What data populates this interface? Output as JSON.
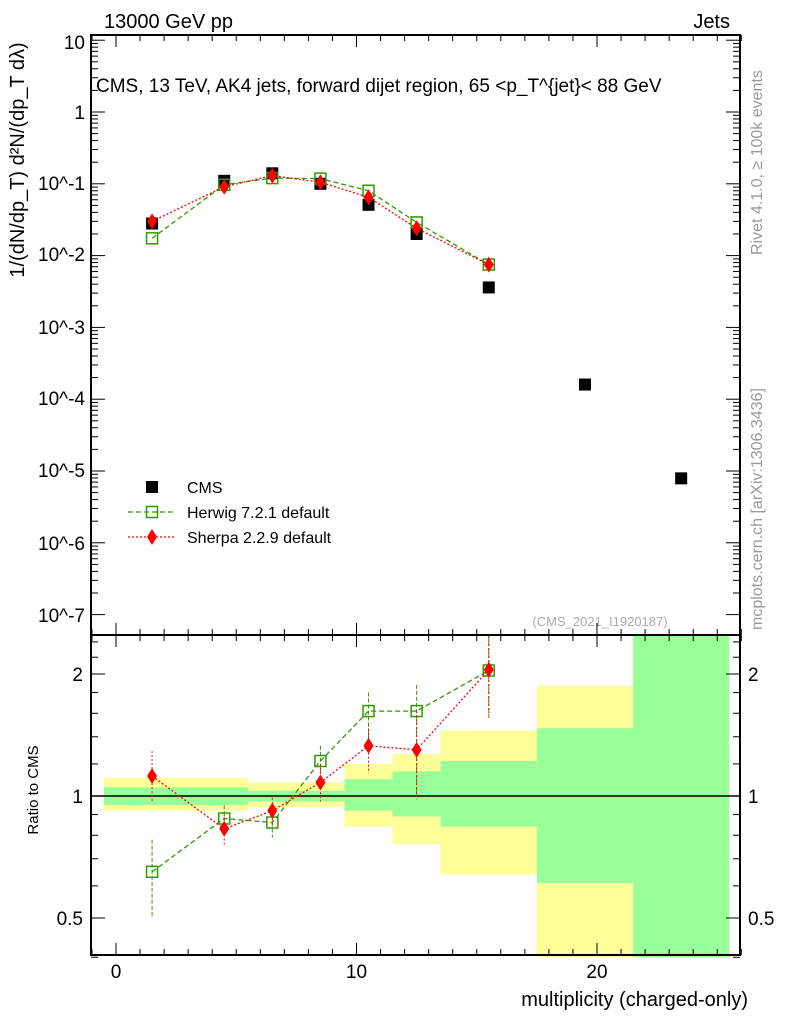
{
  "header": {
    "left": "13000 GeV pp",
    "right": "Jets"
  },
  "side_texts": {
    "rivet": "Rivet 4.1.0, ≥ 100k events",
    "mcplots": "mcplots.cern.ch [arXiv:1306.3436]"
  },
  "chart_data": [
    {
      "type": "scatter",
      "title": "CMS, 13 TeV, AK4 jets, forward dijet region, 65 <p_T^{jet}< 88 GeV",
      "ylabel": "1/(dN/dp_T) d²N/(dp_T dλ)",
      "yscale": "log",
      "ylim": [
        5e-08,
        15
      ],
      "xlim": [
        -1,
        26
      ],
      "yticks": [
        {
          "v": 10,
          "label": "10"
        },
        {
          "v": 1,
          "label": "1"
        },
        {
          "v": 0.1,
          "label": "10^-1"
        },
        {
          "v": 0.01,
          "label": "10^-2"
        },
        {
          "v": 0.001,
          "label": "10^-3"
        },
        {
          "v": 0.0001,
          "label": "10^-4"
        },
        {
          "v": 1e-05,
          "label": "10^-5"
        },
        {
          "v": 1e-06,
          "label": "10^-6"
        },
        {
          "v": 1e-07,
          "label": "10^-7"
        }
      ],
      "watermark": "(CMS_2021_I1920187)",
      "legend_position": "bottom-left",
      "series": [
        {
          "name": "CMS",
          "color": "#000000",
          "marker": "square-filled",
          "x": [
            1.5,
            4.5,
            6.5,
            8.5,
            10.5,
            12.5,
            15.5,
            19.5,
            23.5
          ],
          "y": [
            0.028,
            0.11,
            0.14,
            0.1,
            0.051,
            0.02,
            0.0036,
            0.00016,
            7.9e-06
          ]
        },
        {
          "name": "Herwig 7.2.1 default",
          "color": "#339900",
          "marker": "square-open",
          "line": "dashed",
          "x": [
            1.5,
            4.5,
            6.5,
            8.5,
            10.5,
            12.5,
            15.5
          ],
          "y": [
            0.0174,
            0.097,
            0.12,
            0.118,
            0.08,
            0.029,
            0.0075
          ]
        },
        {
          "name": "Sherpa 2.2.9 default",
          "color": "#ff0000",
          "marker": "diamond",
          "line": "dotted",
          "x": [
            1.5,
            4.5,
            6.5,
            8.5,
            10.5,
            12.5,
            15.5
          ],
          "y": [
            0.03,
            0.091,
            0.13,
            0.105,
            0.065,
            0.024,
            0.0075
          ]
        }
      ]
    },
    {
      "type": "line",
      "ylabel": "Ratio to CMS",
      "xlabel": "multiplicity (charged-only)",
      "yscale": "log",
      "ylim": [
        0.4,
        2.5
      ],
      "xlim": [
        -1,
        26
      ],
      "xticks": [
        {
          "v": 0,
          "label": "0"
        },
        {
          "v": 10,
          "label": "10"
        },
        {
          "v": 20,
          "label": "20"
        }
      ],
      "yticks": [
        {
          "v": 2,
          "label": "2"
        },
        {
          "v": 1,
          "label": "1"
        },
        {
          "v": 0.5,
          "label": "0.5"
        }
      ],
      "bands": {
        "edges": [
          -0.5,
          5.5,
          9.5,
          11.5,
          13.5,
          17.5,
          21.5,
          25.5
        ],
        "stat_lo": [
          0.95,
          0.97,
          0.92,
          0.89,
          0.84,
          0.61,
          0.4
        ],
        "stat_hi": [
          1.05,
          1.03,
          1.1,
          1.15,
          1.22,
          1.47,
          2.5
        ],
        "total_lo": [
          0.92,
          0.94,
          0.84,
          0.76,
          0.64,
          0.4,
          0.4
        ],
        "total_hi": [
          1.11,
          1.08,
          1.2,
          1.27,
          1.45,
          1.87,
          2.5
        ],
        "stat_color": "#99ff99",
        "total_color": "#ffff99"
      },
      "series": [
        {
          "name": "Herwig 7.2.1 default",
          "color": "#339900",
          "x": [
            1.5,
            4.5,
            6.5,
            8.5,
            10.5,
            12.5,
            15.5
          ],
          "y": [
            0.65,
            0.88,
            0.86,
            1.22,
            1.62,
            1.62,
            2.04
          ],
          "err_lo": [
            0.5,
            0.8,
            0.79,
            1.12,
            1.35,
            1.0,
            1.55
          ],
          "err_hi": [
            0.78,
            0.95,
            0.92,
            1.33,
            1.8,
            1.88,
            2.5
          ]
        },
        {
          "name": "Sherpa 2.2.9 default",
          "color": "#ff0000",
          "x": [
            1.5,
            4.5,
            6.5,
            8.5,
            10.5,
            12.5,
            15.5
          ],
          "y": [
            1.12,
            0.83,
            0.92,
            1.08,
            1.33,
            1.3,
            2.05
          ],
          "err_lo": [
            0.97,
            0.75,
            0.85,
            0.97,
            1.14,
            0.98,
            1.6
          ],
          "err_hi": [
            1.29,
            0.9,
            0.99,
            1.2,
            1.5,
            1.62,
            2.5
          ]
        }
      ]
    }
  ]
}
